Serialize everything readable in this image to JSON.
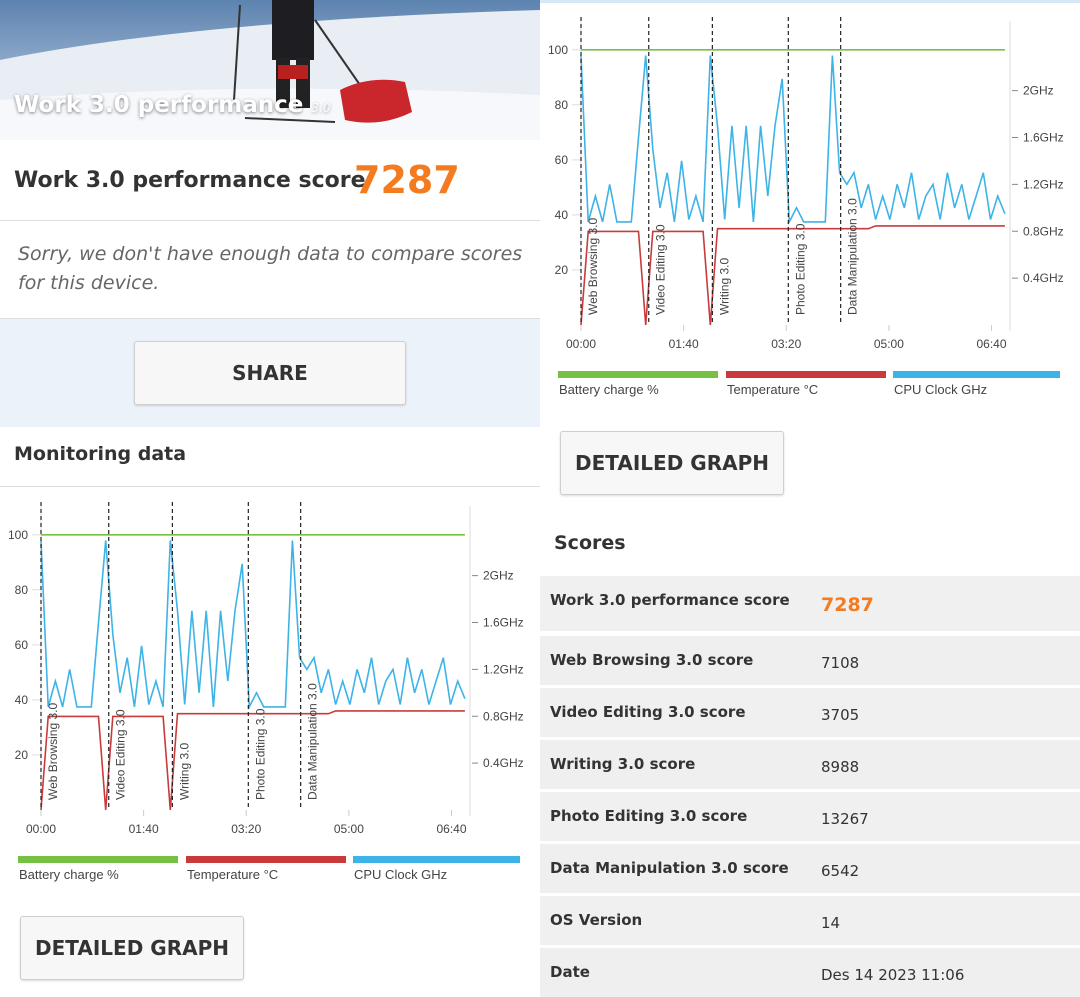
{
  "header": {
    "title": "Work 3.0 performance",
    "badge": "3.0"
  },
  "score": {
    "label": "Work 3.0 performance score",
    "value": 7287
  },
  "message": "Sorry, we don't have enough data to compare scores for this device.",
  "share_button": "SHARE",
  "monitoring_title": "Monitoring data",
  "chart_data": [
    {
      "type": "line",
      "x": [
        0,
        7,
        14,
        21,
        28,
        35,
        42,
        49,
        56,
        63,
        70,
        77,
        84,
        91,
        98,
        105,
        112,
        119,
        126,
        133,
        140,
        147,
        154,
        161,
        168,
        175,
        182,
        189,
        196,
        203,
        210,
        217,
        224,
        231,
        238,
        245,
        252,
        259,
        266,
        273,
        280,
        287,
        294,
        301,
        308,
        315,
        322,
        329,
        336,
        343,
        350,
        357,
        364,
        371,
        378,
        385,
        392,
        399,
        406,
        413
      ],
      "series": [
        {
          "name": "Battery charge %",
          "color": "#76c043",
          "values": [
            100,
            100,
            100,
            100,
            100,
            100,
            100,
            100,
            100,
            100,
            100,
            100,
            100,
            100,
            100,
            100,
            100,
            100,
            100,
            100,
            100,
            100,
            100,
            100,
            100,
            100,
            100,
            100,
            100,
            100,
            100,
            100,
            100,
            100,
            100,
            100,
            100,
            100,
            100,
            100,
            100,
            100,
            100,
            100,
            100,
            100,
            100,
            100,
            100,
            100,
            100,
            100,
            100,
            100,
            100,
            100,
            100,
            100,
            100,
            100
          ]
        },
        {
          "name": "Temperature °C",
          "color": "#c93b3a",
          "values": [
            0,
            34,
            34,
            34,
            34,
            34,
            34,
            34,
            34,
            0,
            34,
            34,
            34,
            34,
            34,
            34,
            34,
            34,
            0,
            35,
            35,
            35,
            35,
            35,
            35,
            35,
            35,
            35,
            35,
            35,
            35,
            35,
            35,
            35,
            35,
            35,
            35,
            35,
            35,
            35,
            35,
            36,
            36,
            36,
            36,
            36,
            36,
            36,
            36,
            36,
            36,
            36,
            36,
            36,
            36,
            36,
            36,
            36,
            36,
            36
          ]
        },
        {
          "name": "CPU Clock GHz",
          "color": "#3db3e8",
          "axis": "y2",
          "values": [
            2.3,
            0.88,
            1.1,
            0.88,
            1.2,
            0.88,
            0.88,
            0.88,
            1.6,
            2.3,
            1.5,
            1.0,
            1.3,
            0.88,
            1.4,
            0.9,
            1.1,
            0.88,
            2.3,
            1.7,
            0.9,
            1.7,
            1.0,
            1.7,
            0.88,
            1.7,
            1.1,
            1.7,
            2.1,
            0.88,
            1.0,
            0.88,
            0.88,
            0.88,
            0.88,
            2.3,
            1.3,
            1.2,
            1.3,
            1.0,
            1.2,
            0.9,
            1.1,
            0.9,
            1.2,
            1.0,
            1.3,
            0.9,
            1.1,
            1.2,
            0.9,
            1.3,
            1.0,
            1.2,
            0.9,
            1.1,
            1.3,
            0.9,
            1.1,
            0.95
          ]
        }
      ],
      "xlim": [
        0,
        418
      ],
      "xticks": [
        {
          "value": 0,
          "label": "00:00"
        },
        {
          "value": 100,
          "label": "01:40"
        },
        {
          "value": 200,
          "label": "03:20"
        },
        {
          "value": 300,
          "label": "05:00"
        },
        {
          "value": 400,
          "label": "06:40"
        }
      ],
      "ylim": [
        0,
        109
      ],
      "yticks": [
        20,
        40,
        60,
        80,
        100
      ],
      "y2lim": [
        0,
        2.56
      ],
      "y2ticks": [
        {
          "value": 0.4,
          "label": "0.4GHz"
        },
        {
          "value": 0.8,
          "label": "0.8GHz"
        },
        {
          "value": 1.2,
          "label": "1.2GHz"
        },
        {
          "value": 1.6,
          "label": "1.6GHz"
        },
        {
          "value": 2,
          "label": "2GHz"
        }
      ],
      "annotations": [
        {
          "x": 0,
          "label": "Web Browsing 3.0"
        },
        {
          "x": 66,
          "label": "Video Editing 3.0"
        },
        {
          "x": 128,
          "label": "Writing 3.0"
        },
        {
          "x": 202,
          "label": "Photo Editing 3.0"
        },
        {
          "x": 253,
          "label": "Data Manipulation 3.0"
        }
      ]
    },
    {
      "type": "line",
      "x": [
        0,
        7,
        14,
        21,
        28,
        35,
        42,
        49,
        56,
        63,
        70,
        77,
        84,
        91,
        98,
        105,
        112,
        119,
        126,
        133,
        140,
        147,
        154,
        161,
        168,
        175,
        182,
        189,
        196,
        203,
        210,
        217,
        224,
        231,
        238,
        245,
        252,
        259,
        266,
        273,
        280,
        287,
        294,
        301,
        308,
        315,
        322,
        329,
        336,
        343,
        350,
        357,
        364,
        371,
        378,
        385,
        392,
        399,
        406,
        413
      ],
      "series": [
        {
          "name": "Battery charge %",
          "color": "#76c043",
          "values": [
            100,
            100,
            100,
            100,
            100,
            100,
            100,
            100,
            100,
            100,
            100,
            100,
            100,
            100,
            100,
            100,
            100,
            100,
            100,
            100,
            100,
            100,
            100,
            100,
            100,
            100,
            100,
            100,
            100,
            100,
            100,
            100,
            100,
            100,
            100,
            100,
            100,
            100,
            100,
            100,
            100,
            100,
            100,
            100,
            100,
            100,
            100,
            100,
            100,
            100,
            100,
            100,
            100,
            100,
            100,
            100,
            100,
            100,
            100,
            100
          ]
        },
        {
          "name": "Temperature °C",
          "color": "#c93b3a",
          "values": [
            0,
            34,
            34,
            34,
            34,
            34,
            34,
            34,
            34,
            0,
            34,
            34,
            34,
            34,
            34,
            34,
            34,
            34,
            0,
            35,
            35,
            35,
            35,
            35,
            35,
            35,
            35,
            35,
            35,
            35,
            35,
            35,
            35,
            35,
            35,
            35,
            35,
            35,
            35,
            35,
            35,
            36,
            36,
            36,
            36,
            36,
            36,
            36,
            36,
            36,
            36,
            36,
            36,
            36,
            36,
            36,
            36,
            36,
            36,
            36
          ]
        },
        {
          "name": "CPU Clock GHz",
          "color": "#3db3e8",
          "axis": "y2",
          "values": [
            2.3,
            0.88,
            1.1,
            0.88,
            1.2,
            0.88,
            0.88,
            0.88,
            1.6,
            2.3,
            1.5,
            1.0,
            1.3,
            0.88,
            1.4,
            0.9,
            1.1,
            0.88,
            2.3,
            1.7,
            0.9,
            1.7,
            1.0,
            1.7,
            0.88,
            1.7,
            1.1,
            1.7,
            2.1,
            0.88,
            1.0,
            0.88,
            0.88,
            0.88,
            0.88,
            2.3,
            1.3,
            1.2,
            1.3,
            1.0,
            1.2,
            0.9,
            1.1,
            0.9,
            1.2,
            1.0,
            1.3,
            0.9,
            1.1,
            1.2,
            0.9,
            1.3,
            1.0,
            1.2,
            0.9,
            1.1,
            1.3,
            0.9,
            1.1,
            0.95
          ]
        }
      ],
      "xlim": [
        0,
        418
      ],
      "xticks": [
        {
          "value": 0,
          "label": "00:00"
        },
        {
          "value": 100,
          "label": "01:40"
        },
        {
          "value": 200,
          "label": "03:20"
        },
        {
          "value": 300,
          "label": "05:00"
        },
        {
          "value": 400,
          "label": "06:40"
        }
      ],
      "ylim": [
        0,
        109
      ],
      "yticks": [
        20,
        40,
        60,
        80,
        100
      ],
      "y2lim": [
        0,
        2.56
      ],
      "y2ticks": [
        {
          "value": 0.4,
          "label": "0.4GHz"
        },
        {
          "value": 0.8,
          "label": "0.8GHz"
        },
        {
          "value": 1.2,
          "label": "1.2GHz"
        },
        {
          "value": 1.6,
          "label": "1.6GHz"
        },
        {
          "value": 2,
          "label": "2GHz"
        }
      ],
      "annotations": [
        {
          "x": 0,
          "label": "Web Browsing 3.0"
        },
        {
          "x": 66,
          "label": "Video Editing 3.0"
        },
        {
          "x": 128,
          "label": "Writing 3.0"
        },
        {
          "x": 202,
          "label": "Photo Editing 3.0"
        },
        {
          "x": 253,
          "label": "Data Manipulation 3.0"
        }
      ]
    }
  ],
  "detail_buttons": [
    "DETAILED GRAPH",
    "DETAILED GRAPH"
  ],
  "scores": {
    "title": "Scores",
    "rows": [
      [
        "Work 3.0 performance score",
        7287
      ],
      [
        "Web Browsing 3.0 score",
        7108
      ],
      [
        "Video Editing 3.0 score",
        3705
      ],
      [
        "Writing 3.0 score",
        8988
      ],
      [
        "Photo Editing 3.0 score",
        13267
      ],
      [
        "Data Manipulation 3.0 score",
        6542
      ],
      [
        "OS Version",
        14
      ],
      [
        "Date",
        "Des 14 2023 11:06"
      ]
    ]
  }
}
